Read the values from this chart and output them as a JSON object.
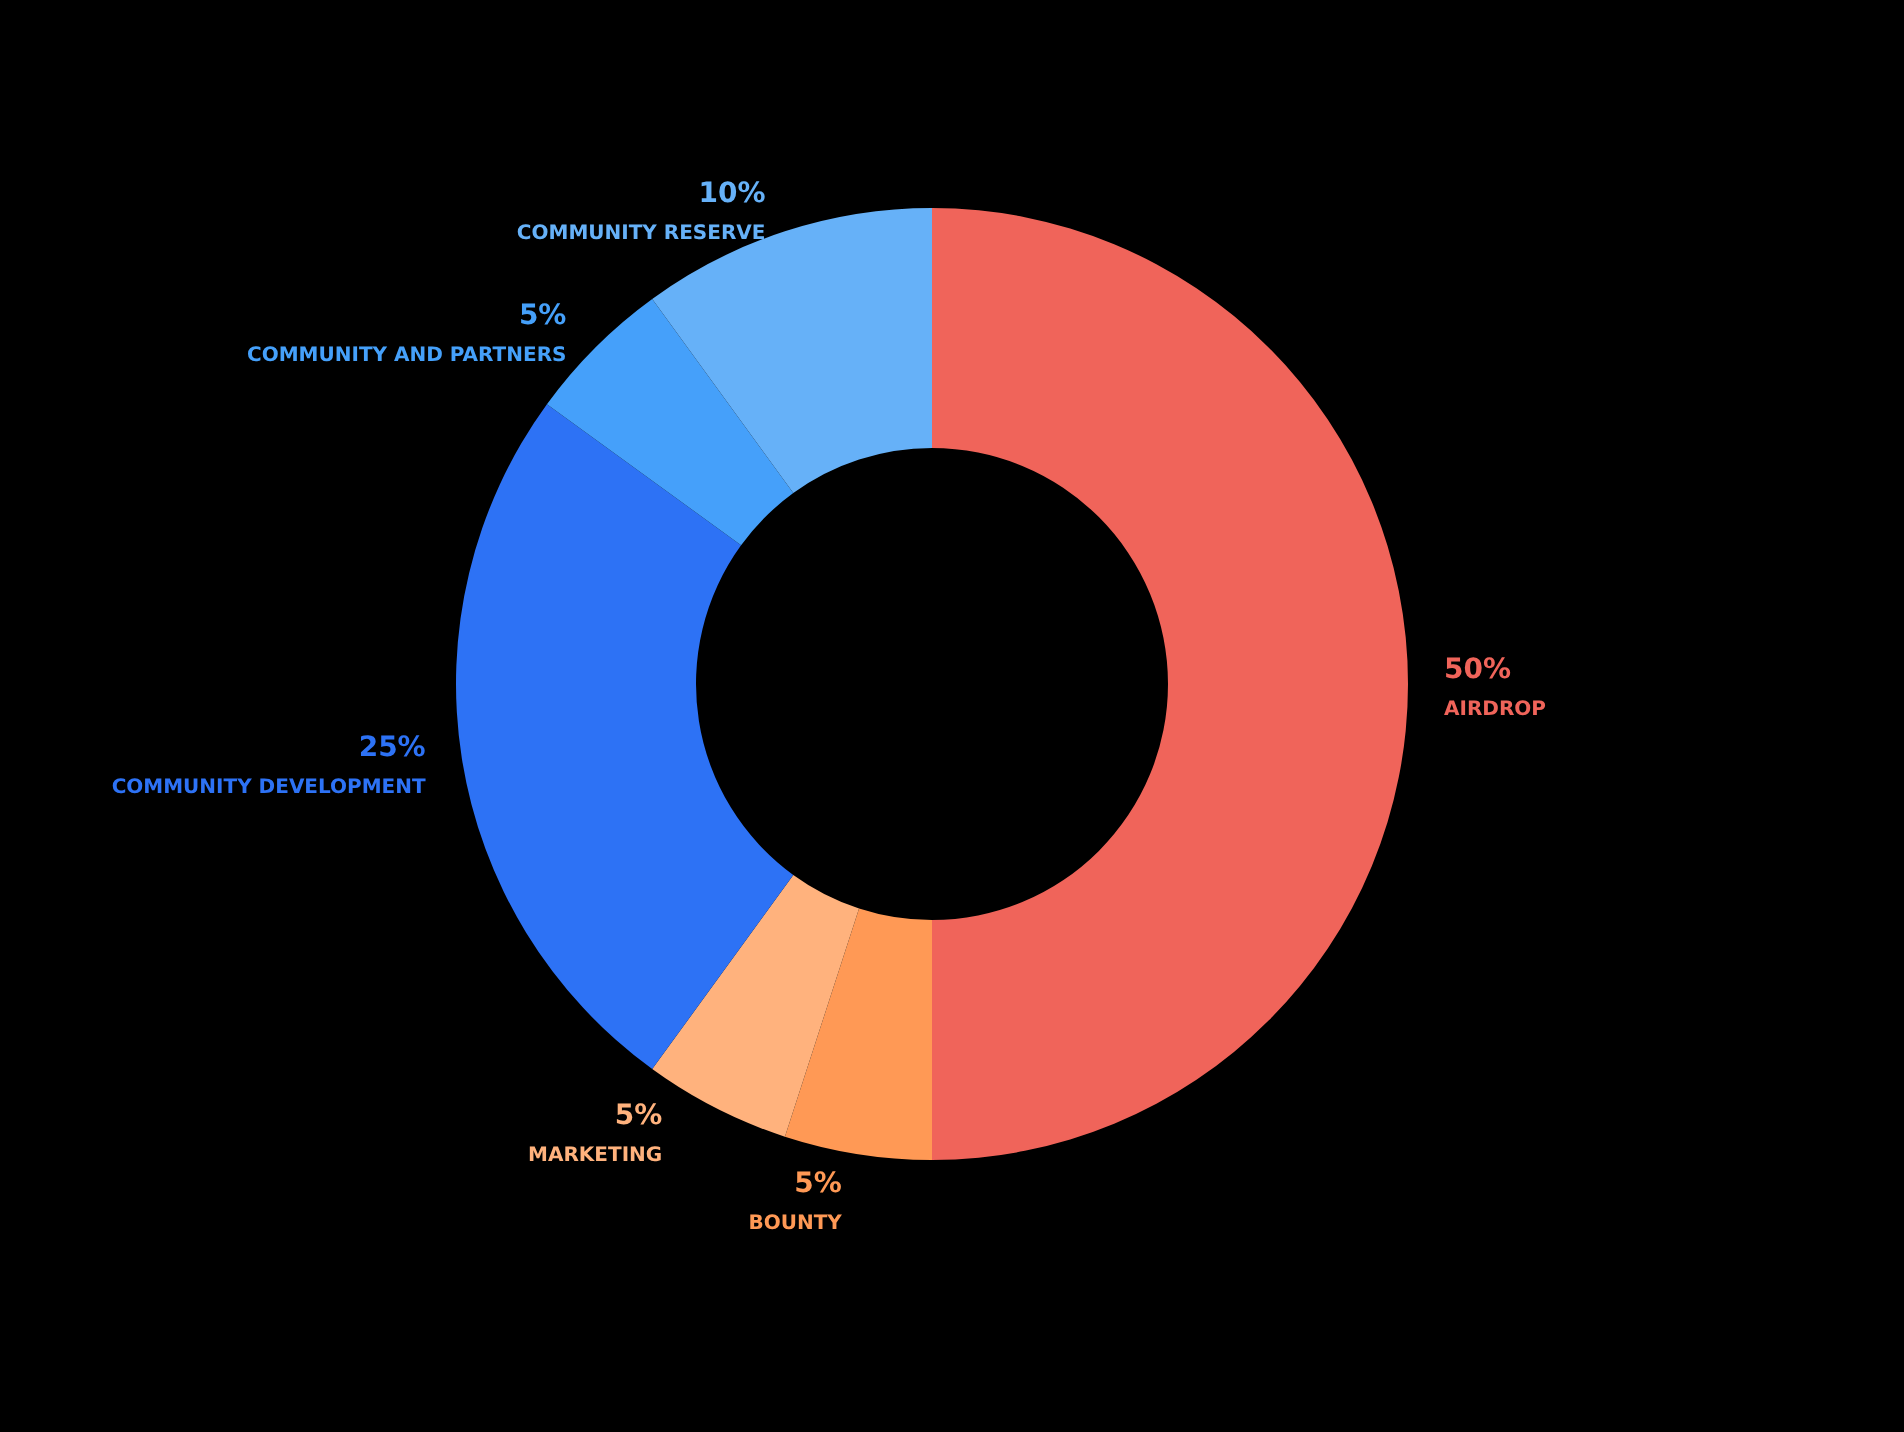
{
  "chart_data": {
    "type": "donut",
    "categories": [
      "AIRDROP",
      "BOUNTY",
      "MARKETING",
      "COMMUNITY DEVELOPMENT",
      "COMMUNITY AND PARTNERS",
      "COMMUNITY RESERVE"
    ],
    "values": [
      50,
      5,
      5,
      25,
      5,
      10
    ],
    "colors": [
      "#f0645a",
      "#ff9955",
      "#ffb27d",
      "#2d72f5",
      "#45a0fa",
      "#66b1f8"
    ],
    "value_labels": [
      "50%",
      "5%",
      "5%",
      "25%",
      "5%",
      "10%"
    ],
    "legend": false
  }
}
